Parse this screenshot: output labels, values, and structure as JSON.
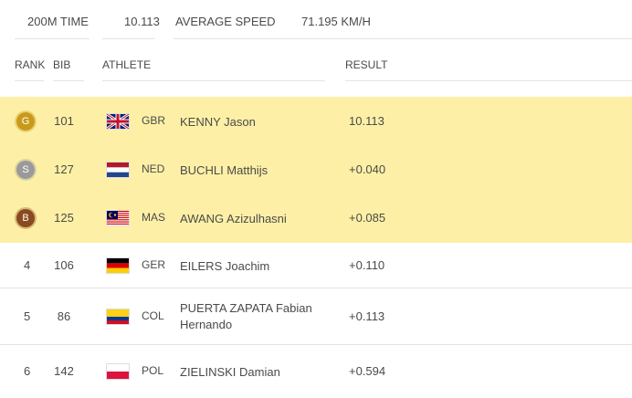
{
  "summary": [
    {
      "label": "200M TIME",
      "value": "10.113"
    },
    {
      "label": "AVERAGE SPEED",
      "value": "71.195 KM/H"
    }
  ],
  "table": {
    "columns": [
      "RANK",
      "BIB",
      "ATHLETE",
      "RESULT"
    ],
    "rows": [
      {
        "medal": "G",
        "bib": "101",
        "country": "GBR",
        "athlete": "KENNY Jason",
        "result": "10.113"
      },
      {
        "medal": "S",
        "bib": "127",
        "country": "NED",
        "athlete": "BUCHLI Matthijs",
        "result": "+0.040"
      },
      {
        "medal": "B",
        "bib": "125",
        "country": "MAS",
        "athlete": "AWANG Azizulhasni",
        "result": "+0.085"
      },
      {
        "rank": "4",
        "bib": "106",
        "country": "GER",
        "athlete": "EILERS Joachim",
        "result": "+0.110"
      },
      {
        "rank": "5",
        "bib": "86",
        "country": "COL",
        "athlete": "PUERTA ZAPATA Fabian Hernando",
        "result": "+0.113"
      },
      {
        "rank": "6",
        "bib": "142",
        "country": "POL",
        "athlete": "ZIELINSKI Damian",
        "result": "+0.594"
      }
    ]
  }
}
